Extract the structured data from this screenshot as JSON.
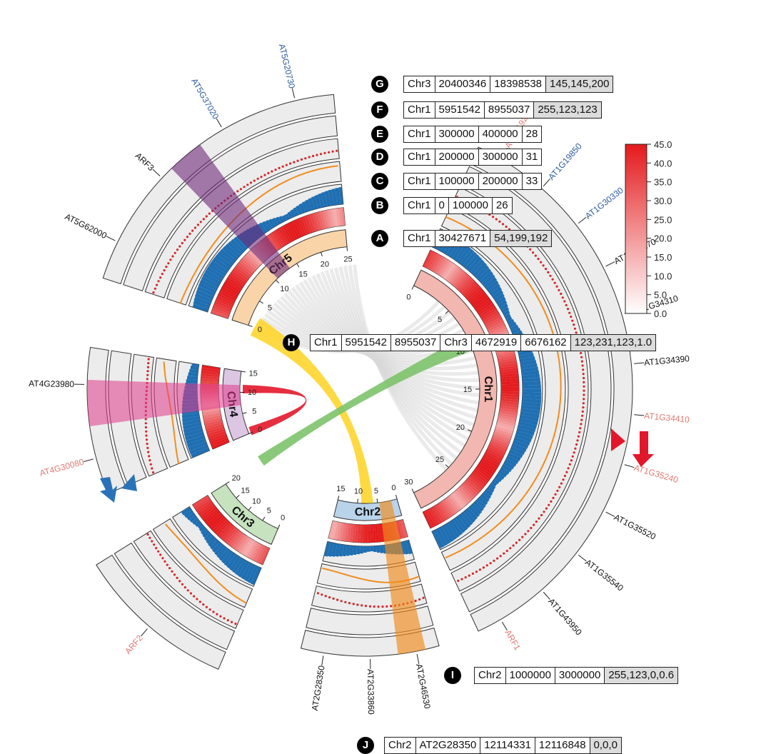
{
  "chromosomes": [
    {
      "name": "Chr1",
      "ticks": [
        "0",
        "5",
        "10",
        "15",
        "20",
        "25",
        "30"
      ],
      "color": "#f2b7b0"
    },
    {
      "name": "Chr2",
      "ticks": [
        "0",
        "5",
        "10",
        "15"
      ],
      "color": "#b9d3ea"
    },
    {
      "name": "Chr3",
      "ticks": [
        "0",
        "5",
        "10",
        "15",
        "20"
      ],
      "color": "#c6e2bf"
    },
    {
      "name": "Chr4",
      "ticks": [
        "0",
        "5",
        "10",
        "15"
      ],
      "color": "#dcc6e4"
    },
    {
      "name": "Chr5",
      "ticks": [
        "0",
        "5",
        "10",
        "15",
        "20",
        "25"
      ],
      "color": "#f8d4a8"
    }
  ],
  "gene_labels": {
    "chr5": [
      {
        "text": "AT5G62000",
        "color": "#111111"
      },
      {
        "text": "ARF3",
        "color": "#111111"
      },
      {
        "text": "AT5G37020",
        "color": "#2b5aa0"
      },
      {
        "text": "AT5G20730",
        "color": "#2b5aa0"
      }
    ],
    "chr4": [
      {
        "text": "AT4G30080",
        "color": "#e07a74"
      },
      {
        "text": "AT4G23980",
        "color": "#111111"
      }
    ],
    "chr3": [
      {
        "text": "ARF2",
        "color": "#e07a74"
      }
    ],
    "chr2": [
      {
        "text": "AT2G46530",
        "color": "#111111"
      },
      {
        "text": "AT2G33860",
        "color": "#111111"
      },
      {
        "text": "AT2G28350",
        "color": "#111111"
      }
    ],
    "chr1": [
      {
        "text": "AT1G19220",
        "color": "#e07a74"
      },
      {
        "text": "AT1G19850",
        "color": "#2b5aa0"
      },
      {
        "text": "AT1G30330",
        "color": "#2b5aa0"
      },
      {
        "text": "AT1G34170",
        "color": "#111111"
      },
      {
        "text": "AT1G34310",
        "color": "#111111"
      },
      {
        "text": "AT1G34390",
        "color": "#111111"
      },
      {
        "text": "AT1G34410",
        "color": "#e07a74"
      },
      {
        "text": "AT1G35240",
        "color": "#e07a74"
      },
      {
        "text": "AT1G35520",
        "color": "#111111"
      },
      {
        "text": "AT1G35540",
        "color": "#111111"
      },
      {
        "text": "AT1G43950",
        "color": "#111111"
      },
      {
        "text": "ARF1",
        "color": "#e07a74"
      }
    ]
  },
  "legend": {
    "ticks": [
      "45.0",
      "40.0",
      "35.0",
      "30.0",
      "25.0",
      "20.0",
      "15.0",
      "10.0",
      "5.0",
      "0.0"
    ],
    "color_high": "#e41a1c",
    "color_low": "#ffffff"
  },
  "tables": [
    {
      "marker": "G",
      "cells": [
        "Chr3",
        "20400346",
        "18398538",
        "145,145,200"
      ]
    },
    {
      "marker": "F",
      "cells": [
        "Chr1",
        "5951542",
        "8955037",
        "255,123,123"
      ]
    },
    {
      "marker": "E",
      "cells": [
        "Chr1",
        "300000",
        "400000",
        "28"
      ]
    },
    {
      "marker": "D",
      "cells": [
        "Chr1",
        "200000",
        "300000",
        "31"
      ]
    },
    {
      "marker": "C",
      "cells": [
        "Chr1",
        "100000",
        "200000",
        "33"
      ]
    },
    {
      "marker": "B",
      "cells": [
        "Chr1",
        "0",
        "100000",
        "26"
      ]
    },
    {
      "marker": "A",
      "cells": [
        "Chr1",
        "30427671",
        "54,199,192"
      ]
    },
    {
      "marker": "H",
      "cells": [
        "Chr1",
        "5951542",
        "8955037",
        "Chr3",
        "4672919",
        "6676162",
        "123,231,123,1.0"
      ]
    },
    {
      "marker": "I",
      "cells": [
        "Chr2",
        "1000000",
        "3000000",
        "255,123,0,0.6"
      ]
    },
    {
      "marker": "J",
      "cells": [
        "Chr2",
        "AT2G28350",
        "12114331",
        "12116848",
        "0,0,0"
      ]
    }
  ],
  "colors": {
    "scatter": "#d62728",
    "line": "#f28c1e",
    "histogram": "#1f6fb2",
    "track_bg": "#ececec",
    "link_yellow": "#ffd52e",
    "link_green": "#7dc36b",
    "link_red": "#e3172b",
    "highlight_purple": "#6e2a7a",
    "highlight_pink": "#e0398a",
    "highlight_orange": "#f08a1c"
  }
}
